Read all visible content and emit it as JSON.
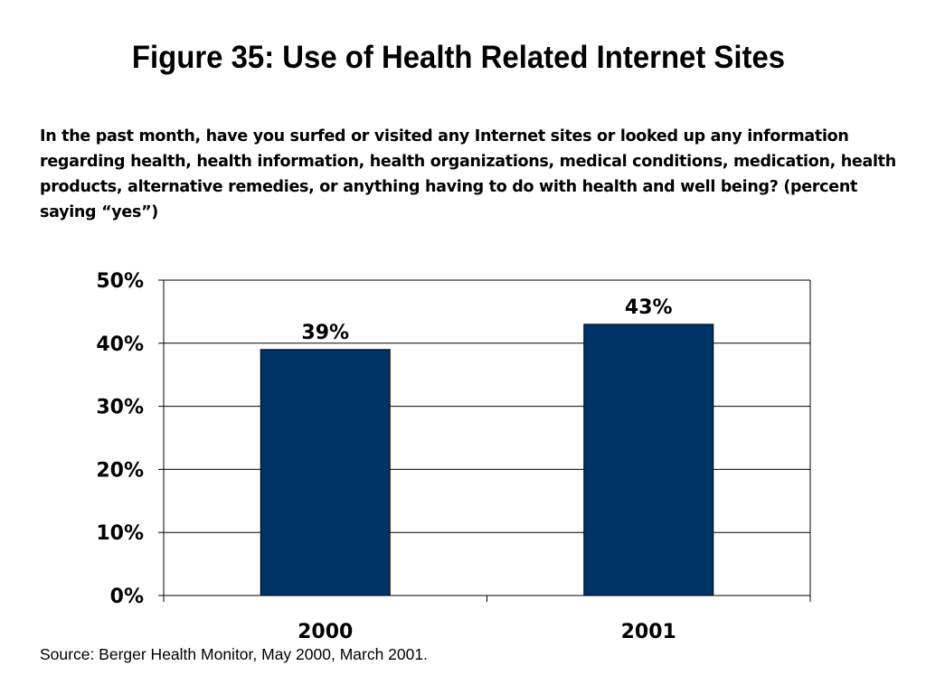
{
  "title": "Figure 35: Use of Health Related Internet Sites",
  "question": "In the past month, have you surfed or visited any Internet sites or looked up any information regarding health, health information, health organizations, medical conditions, medication, health products, alternative remedies, or anything having to do with health and well being? (percent saying “yes”)",
  "source": "Source: Berger Health Monitor, May 2000, March 2001.",
  "chart_data": {
    "type": "bar",
    "categories": [
      "2000",
      "2001"
    ],
    "values": [
      39,
      43
    ],
    "value_labels": [
      "39%",
      "43%"
    ],
    "ylim": [
      0,
      50
    ],
    "yticks": [
      0,
      10,
      20,
      30,
      40,
      50
    ],
    "ytick_labels": [
      "0%",
      "10%",
      "20%",
      "30%",
      "40%",
      "50%"
    ],
    "grid": true,
    "bar_color": "#003366"
  }
}
